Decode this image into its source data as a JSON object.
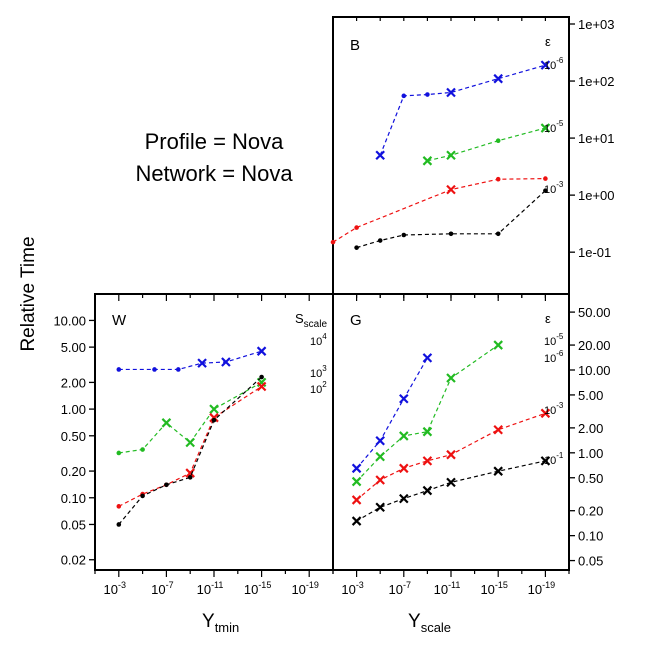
{
  "annotation": {
    "line1": "Profile = Nova",
    "line2": "Network = Nova"
  },
  "y_axis_label": "Relative Time",
  "x_axis_labels": {
    "left": "Y",
    "left_sub": "tmin",
    "right": "Y",
    "right_sub": "scale"
  },
  "colors": {
    "black": "#000000",
    "red": "#ee1111",
    "green": "#22bb22",
    "blue": "#1111dd"
  },
  "chart_data": [
    {
      "panel": "B",
      "type": "line",
      "legend_title": "ε",
      "xscale": "log",
      "yscale": "log",
      "xlim_exponent": [
        -1,
        -21
      ],
      "ylim": [
        0.03,
        1000
      ],
      "yticks": [
        "1e-01",
        "1e+00",
        "1e+01",
        "1e+02",
        "1e+03"
      ],
      "ytick_values": [
        0.1,
        1,
        10,
        100,
        1000
      ],
      "series": [
        {
          "name": "10^-6",
          "color": "blue",
          "marker": "x",
          "label_base": "10",
          "label_exp": "-6",
          "x_exp": [
            -5,
            -7,
            -9,
            -11,
            -15,
            -19
          ],
          "y": [
            5,
            55,
            58,
            63,
            110,
            190
          ],
          "markers": [
            "x",
            "dot",
            "dot",
            "x",
            "x",
            "x"
          ]
        },
        {
          "name": "10^-5",
          "color": "green",
          "marker": "x",
          "label_base": "10",
          "label_exp": "-5",
          "x_exp": [
            -9,
            -11,
            -15,
            -19
          ],
          "y": [
            4,
            5,
            9,
            15
          ],
          "markers": [
            "x",
            "x",
            "dot",
            "x"
          ]
        },
        {
          "name": "10^-3",
          "color": "red",
          "marker": "dot",
          "label_base": "10",
          "label_exp": "-3",
          "x_exp": [
            -1,
            -3,
            -11,
            -15,
            -19
          ],
          "y": [
            0.15,
            0.27,
            1.25,
            1.9,
            1.95
          ],
          "markers": [
            "dot",
            "dot",
            "x",
            "dot",
            "dot"
          ]
        },
        {
          "name": "black",
          "color": "black",
          "marker": "dot",
          "label_base": "",
          "label_exp": "",
          "x_exp": [
            -3,
            -5,
            -7,
            -11,
            -15,
            -19
          ],
          "y": [
            0.12,
            0.16,
            0.2,
            0.21,
            0.21,
            1.2
          ],
          "markers": [
            "dot",
            "dot",
            "dot",
            "dot",
            "dot",
            "dot"
          ]
        }
      ]
    },
    {
      "panel": "W",
      "type": "line",
      "legend_title": "S",
      "legend_title_sub": "scale",
      "xscale": "log",
      "yscale": "log",
      "xlabel": "Ytmin",
      "ylabel": "Relative Time",
      "xticks_exp": [
        -3,
        -7,
        -11,
        -15,
        -19
      ],
      "xtick_base": "10",
      "xlim_exponent": [
        -1,
        -21
      ],
      "ylim": [
        0.017,
        17
      ],
      "yticks": [
        "0.02",
        "0.05",
        "0.10",
        "0.20",
        "0.50",
        "1.00",
        "2.00",
        "5.00",
        "10.00"
      ],
      "ytick_values": [
        0.02,
        0.05,
        0.1,
        0.2,
        0.5,
        1,
        2,
        5,
        10
      ],
      "series": [
        {
          "name": "10^4",
          "color": "blue",
          "label_base": "10",
          "label_exp": "4",
          "x_exp": [
            -3,
            -6,
            -8,
            -10,
            -12,
            -15
          ],
          "y": [
            2.8,
            2.8,
            2.8,
            3.3,
            3.4,
            4.5
          ],
          "markers": [
            "dot",
            "dot",
            "dot",
            "x",
            "x",
            "x"
          ]
        },
        {
          "name": "10^3",
          "color": "green",
          "label_base": "10",
          "label_exp": "3",
          "x_exp": [
            -3,
            -5,
            -7,
            -9,
            -11,
            -15
          ],
          "y": [
            0.32,
            0.35,
            0.7,
            0.42,
            1.0,
            2.0
          ],
          "markers": [
            "dot",
            "dot",
            "x",
            "x",
            "x",
            "x"
          ]
        },
        {
          "name": "10^2",
          "color": "red",
          "label_base": "10",
          "label_exp": "2",
          "x_exp": [
            -3,
            -5,
            -7,
            -9,
            -11,
            -15
          ],
          "y": [
            0.08,
            0.11,
            0.14,
            0.19,
            0.8,
            1.8
          ],
          "markers": [
            "dot",
            "dot",
            "dot",
            "x",
            "x",
            "x"
          ]
        },
        {
          "name": "black",
          "color": "black",
          "label_base": "",
          "label_exp": "",
          "x_exp": [
            -3,
            -5,
            -7,
            -9,
            -11,
            -15
          ],
          "y": [
            0.05,
            0.105,
            0.14,
            0.17,
            0.75,
            2.3
          ],
          "markers": [
            "dot",
            "dot",
            "dot",
            "dot",
            "dot",
            "dot"
          ]
        }
      ]
    },
    {
      "panel": "G",
      "type": "line",
      "legend_title": "ε",
      "xscale": "log",
      "yscale": "log",
      "xlabel": "Yscale",
      "xticks_exp": [
        -3,
        -7,
        -11,
        -15,
        -19
      ],
      "xtick_base": "10",
      "xlim_exponent": [
        -1,
        -21
      ],
      "ylim": [
        0.043,
        70
      ],
      "yticks": [
        "0.05",
        "0.10",
        "0.20",
        "0.50",
        "1.00",
        "2.00",
        "5.00",
        "10.00",
        "20.00",
        "50.00"
      ],
      "ytick_values": [
        0.05,
        0.1,
        0.2,
        0.5,
        1,
        2,
        5,
        10,
        20,
        50
      ],
      "series": [
        {
          "name": "10^-6",
          "color": "blue",
          "label_base": "10",
          "label_exp": "-6",
          "x_exp": [
            -3,
            -5,
            -7,
            -9
          ],
          "y": [
            0.65,
            1.4,
            4.5,
            14
          ],
          "markers": [
            "x",
            "x",
            "x",
            "x"
          ]
        },
        {
          "name": "10^-5",
          "color": "green",
          "label_base": "10",
          "label_exp": "-5",
          "x_exp": [
            -3,
            -5,
            -7,
            -9,
            -11,
            -15
          ],
          "y": [
            0.45,
            0.9,
            1.6,
            1.8,
            8,
            20
          ],
          "markers": [
            "x",
            "x",
            "x",
            "x",
            "x",
            "x"
          ]
        },
        {
          "name": "10^-3",
          "color": "red",
          "label_base": "10",
          "label_exp": "-3",
          "x_exp": [
            -3,
            -5,
            -7,
            -9,
            -11,
            -15,
            -19
          ],
          "y": [
            0.27,
            0.47,
            0.65,
            0.8,
            0.95,
            1.9,
            3.0
          ],
          "markers": [
            "x",
            "x",
            "x",
            "x",
            "x",
            "x",
            "x"
          ]
        },
        {
          "name": "10^-1",
          "color": "black",
          "label_base": "10",
          "label_exp": "-1",
          "x_exp": [
            -3,
            -5,
            -7,
            -9,
            -11,
            -15,
            -19
          ],
          "y": [
            0.15,
            0.22,
            0.28,
            0.35,
            0.44,
            0.6,
            0.8
          ],
          "markers": [
            "x",
            "x",
            "x",
            "x",
            "x",
            "x",
            "x"
          ]
        }
      ]
    }
  ]
}
